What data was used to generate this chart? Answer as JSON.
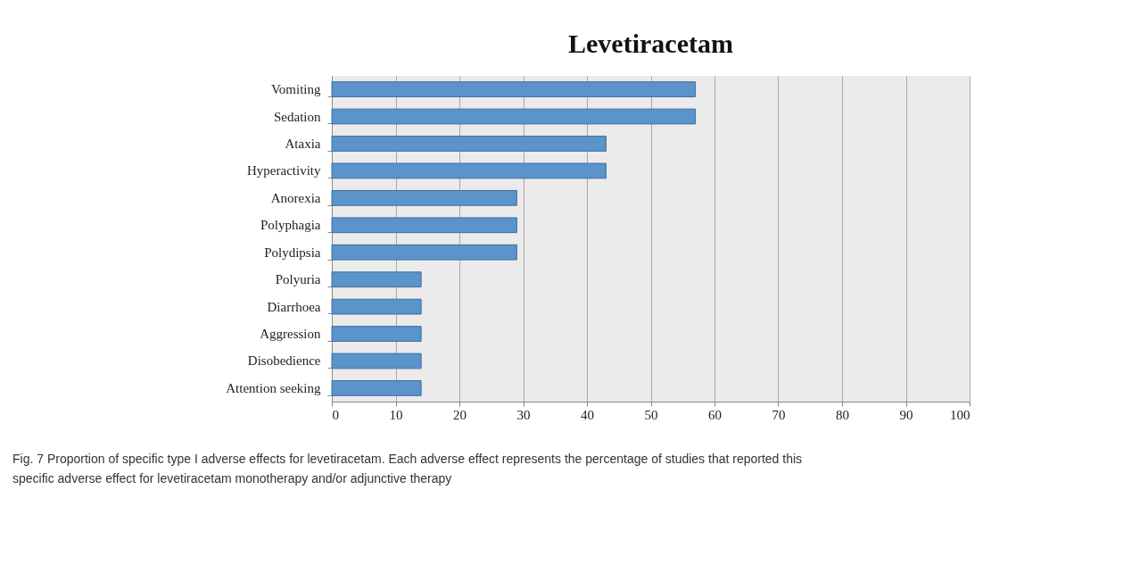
{
  "chart_data": {
    "type": "bar",
    "orientation": "horizontal",
    "title": "Levetiracetam",
    "categories": [
      "Vomiting",
      "Sedation",
      "Ataxia",
      "Hyperactivity",
      "Anorexia",
      "Polyphagia",
      "Polydipsia",
      "Polyuria",
      "Diarrhoea",
      "Aggression",
      "Disobedience",
      "Attention seeking"
    ],
    "values": [
      57,
      57,
      43,
      43,
      29,
      29,
      29,
      14,
      14,
      14,
      14,
      14
    ],
    "color": "#5b93cb",
    "xlim": [
      0,
      100
    ],
    "xticks": [
      0,
      10,
      20,
      30,
      40,
      50,
      60,
      70,
      80,
      90,
      100
    ],
    "grid": "x",
    "annotations": [
      "Fig. 7 Proportion of specific type I adverse effects for levetiracetam. Each adverse effect represents the percentage of studies that reported this specific adverse effect for levetiracetam monotherapy and/or adjunctive therapy"
    ]
  }
}
